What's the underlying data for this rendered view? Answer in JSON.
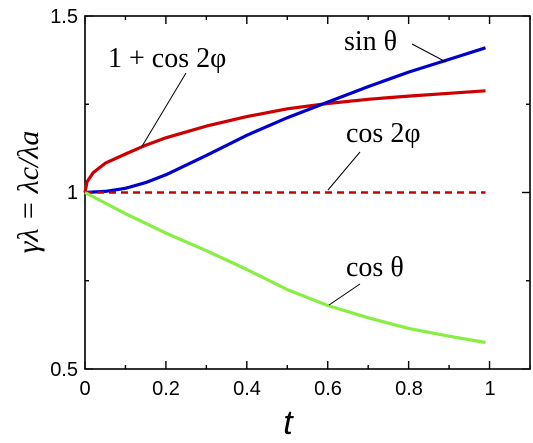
{
  "chart_data": {
    "type": "line",
    "title": "",
    "xlabel": "t",
    "ylabel": "γλ = λc/λa",
    "xlim": [
      0,
      1.1
    ],
    "ylim": [
      0.5,
      1.5
    ],
    "grid": false,
    "xticks": [
      "0",
      "0.2",
      "0.4",
      "0.6",
      "0.8",
      "1"
    ],
    "yticks": [
      "0.5",
      "1",
      "1.5"
    ],
    "series": [
      {
        "name": "1 + cos 2φ",
        "color": "#cc0000",
        "dash": "solid",
        "x": [
          0,
          0.005,
          0.02,
          0.05,
          0.1,
          0.15,
          0.2,
          0.3,
          0.4,
          0.5,
          0.6,
          0.7,
          0.8,
          0.9,
          0.99
        ],
        "y": [
          1.0,
          1.03,
          1.056,
          1.083,
          1.109,
          1.134,
          1.155,
          1.188,
          1.215,
          1.237,
          1.252,
          1.264,
          1.273,
          1.281,
          1.288
        ]
      },
      {
        "name": "sin θ",
        "color": "#0000cc",
        "dash": "solid",
        "x": [
          0,
          0.05,
          0.1,
          0.15,
          0.2,
          0.3,
          0.4,
          0.5,
          0.6,
          0.7,
          0.8,
          0.9,
          0.99
        ],
        "y": [
          1.0,
          1.003,
          1.012,
          1.028,
          1.05,
          1.105,
          1.162,
          1.212,
          1.256,
          1.3,
          1.341,
          1.377,
          1.41
        ]
      },
      {
        "name": "cos 2φ",
        "color": "#cc0000",
        "dash": "dashed",
        "x": [
          0,
          0.99
        ],
        "y": [
          1.0,
          1.0
        ]
      },
      {
        "name": "cos θ",
        "color": "#88ee44",
        "dash": "solid",
        "x": [
          0,
          0.1,
          0.2,
          0.3,
          0.4,
          0.5,
          0.6,
          0.7,
          0.8,
          0.9,
          0.99
        ],
        "y": [
          1.0,
          0.94,
          0.885,
          0.835,
          0.782,
          0.725,
          0.68,
          0.645,
          0.615,
          0.593,
          0.575
        ]
      }
    ],
    "annotations": [
      {
        "label": "1 + cos 2φ",
        "series": "1 + cos 2φ"
      },
      {
        "label": "sin θ",
        "series": "sin θ"
      },
      {
        "label": "cos 2φ",
        "series": "cos 2φ"
      },
      {
        "label": "cos θ",
        "series": "cos θ"
      }
    ]
  }
}
